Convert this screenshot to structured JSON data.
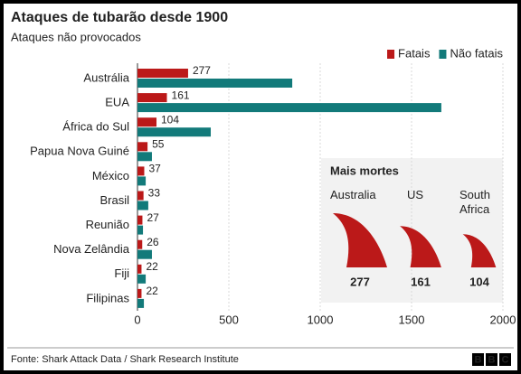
{
  "chart_data": {
    "type": "bar",
    "orientation": "horizontal",
    "title": "Ataques de tubarão desde 1900",
    "subtitle": "Ataques não provocados",
    "categories": [
      "Austrália",
      "EUA",
      "África do Sul",
      "Papua Nova Guiné",
      "México",
      "Brasil",
      "Reunião",
      "Nova Zelândia",
      "Fiji",
      "Filipinas"
    ],
    "series": [
      {
        "name": "Fatais",
        "color": "#bb1919",
        "values": [
          277,
          161,
          104,
          55,
          37,
          33,
          27,
          26,
          22,
          22
        ]
      },
      {
        "name": "Não fatais",
        "color": "#127a7a",
        "values": [
          847,
          1663,
          401,
          79,
          45,
          59,
          30,
          79,
          45,
          35
        ]
      }
    ],
    "xlim": [
      0,
      2000
    ],
    "xticks": [
      0,
      500,
      1000,
      1500,
      2000
    ],
    "grid": true,
    "legend": "top-right",
    "inset": {
      "title": "Mais mortes",
      "labels": [
        "Australia",
        "US",
        "South Africa"
      ],
      "values": [
        277,
        161,
        104
      ],
      "color": "#bb1919"
    },
    "footer": "Fonte: Shark Attack Data / Shark Research Institute",
    "logo": [
      "B",
      "B",
      "C"
    ]
  }
}
